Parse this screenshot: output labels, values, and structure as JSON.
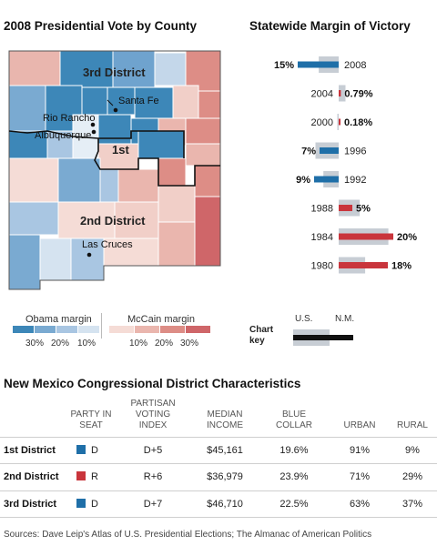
{
  "map": {
    "title": "2008 Presidential Vote by County",
    "districts": [
      "3rd District",
      "1st",
      "2nd District"
    ],
    "cities": [
      "Santa Fe",
      "Rio Rancho",
      "Albuquerque",
      "Las Cruces"
    ],
    "legend": {
      "obama_label": "Obama margin",
      "mccain_label": "McCain margin",
      "obama_ticks": [
        "30%",
        "20%",
        "10%"
      ],
      "mccain_ticks": [
        "10%",
        "20%",
        "30%"
      ],
      "obama_colors": [
        "#3d87b8",
        "#7aaad1",
        "#a9c6e2",
        "#d5e3f0"
      ],
      "mccain_colors": [
        "#f5dcd6",
        "#eab6ae",
        "#dd8d86",
        "#cf6669"
      ]
    }
  },
  "chart_data": {
    "type": "bar",
    "title": "Statewide Margin of Victory",
    "categories": [
      "2008",
      "2004",
      "2000",
      "1996",
      "1992",
      "1988",
      "1984",
      "1980"
    ],
    "series": [
      {
        "name": "N.M.",
        "values": [
          -15,
          0.79,
          0.18,
          -7,
          -9,
          5,
          20,
          18
        ]
      },
      {
        "name": "U.S.",
        "values": [
          -7.3,
          2.5,
          -0.5,
          -8.5,
          -5.6,
          7.7,
          18.2,
          9.7
        ]
      }
    ],
    "value_labels": [
      "15%",
      "0.79%",
      "0.18%",
      "7%",
      "9%",
      "5%",
      "20%",
      "18%"
    ],
    "colors": {
      "democrat": "#1f6fa8",
      "republican": "#c9353c",
      "us": "#c7cdd4"
    },
    "key": {
      "title": "Chart key",
      "us_label": "U.S.",
      "nm_label": "N.M."
    }
  },
  "table": {
    "title": "New Mexico Congressional District Characteristics",
    "headers": [
      "PARTY IN SEAT",
      "PARTISAN VOTING INDEX",
      "MEDIAN INCOME",
      "BLUE COLLAR",
      "URBAN",
      "RURAL"
    ],
    "rows": [
      {
        "district": "1st District",
        "party": "D",
        "party_color": "#1f6fa8",
        "pvi": "D+5",
        "income": "$45,161",
        "blue_collar": "19.6%",
        "urban": "91%",
        "rural": "9%"
      },
      {
        "district": "2nd District",
        "party": "R",
        "party_color": "#c9353c",
        "pvi": "R+6",
        "income": "$36,979",
        "blue_collar": "23.9%",
        "urban": "71%",
        "rural": "29%"
      },
      {
        "district": "3rd District",
        "party": "D",
        "party_color": "#1f6fa8",
        "pvi": "D+7",
        "income": "$46,710",
        "blue_collar": "22.5%",
        "urban": "63%",
        "rural": "37%"
      }
    ]
  },
  "source": "Sources: Dave Leip's Atlas of U.S. Presidential Elections; The Almanac of American Politics"
}
